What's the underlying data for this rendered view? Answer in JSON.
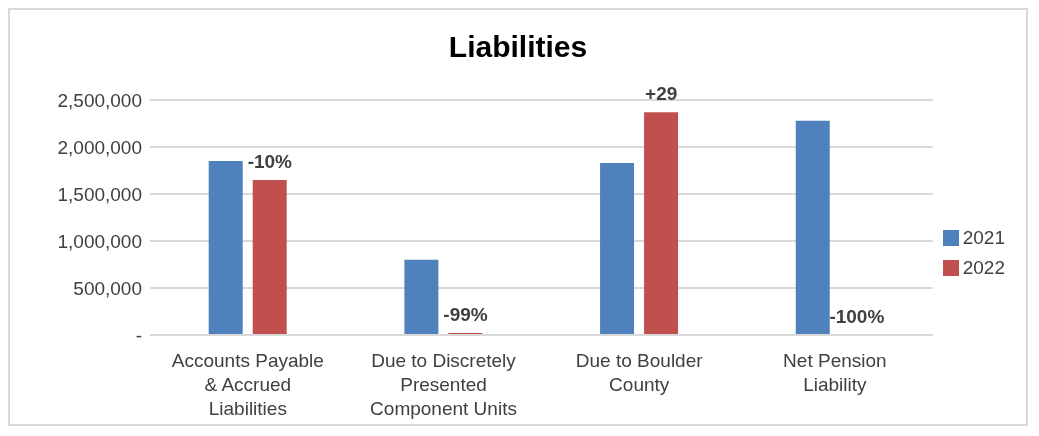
{
  "chart_data": {
    "type": "bar",
    "title": "Liabilities",
    "categories": [
      "Accounts Payable & Accrued Liabilities",
      "Due to Discretely Presented Component Units",
      "Due to Boulder County",
      "Net Pension Liability"
    ],
    "series": [
      {
        "name": "2021",
        "color": "#4f81bd",
        "values": [
          1850000,
          800000,
          1830000,
          2280000
        ]
      },
      {
        "name": "2022",
        "color": "#c0504d",
        "values": [
          1650000,
          20000,
          2370000,
          0
        ]
      }
    ],
    "annotations": [
      {
        "text": "-10%",
        "x": "Accounts Payable & Accrued Liabilities",
        "y": 1650000
      },
      {
        "text": "-99%",
        "x": "Due to Discretely Presented Component Units",
        "y": 20000
      },
      {
        "text": "+29",
        "x": "Due to Boulder County",
        "y": 2370000
      },
      {
        "text": "-100%",
        "x": "Net Pension Liability",
        "y": 0
      }
    ],
    "ylim": [
      0,
      2500000
    ],
    "yticks": [
      {
        "value": 0,
        "label": "-"
      },
      {
        "value": 500000,
        "label": "500,000"
      },
      {
        "value": 1000000,
        "label": "1,000,000"
      },
      {
        "value": 1500000,
        "label": "1,500,000"
      },
      {
        "value": 2000000,
        "label": "2,000,000"
      },
      {
        "value": 2500000,
        "label": "2,500,000"
      }
    ],
    "grid": "y",
    "legend": "right"
  }
}
